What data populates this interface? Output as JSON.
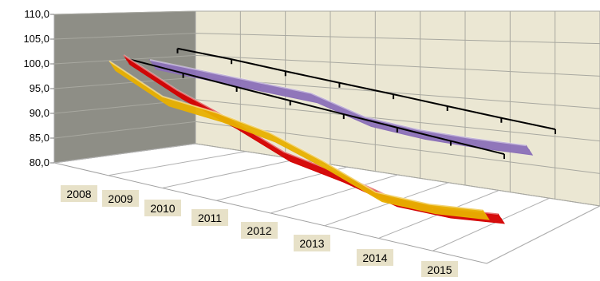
{
  "chart_data": {
    "type": "line",
    "style": "3d-ribbon",
    "title": "",
    "xlabel": "",
    "ylabel": "",
    "categories": [
      "2008",
      "2009",
      "2010",
      "2011",
      "2012",
      "2013",
      "2014",
      "2015"
    ],
    "y_ticks": [
      "80,0",
      "85,0",
      "90,0",
      "95,0",
      "100,0",
      "105,0",
      "110,0"
    ],
    "ylim": [
      80,
      110
    ],
    "grid": true,
    "legend": "none",
    "series": [
      {
        "color": "#e8b000",
        "values": [
          100.0,
          95.0,
          94.0,
          92.0,
          88.0,
          83.0,
          82.5,
          83.5
        ]
      },
      {
        "color": "#d40000",
        "values": [
          101.0,
          96.0,
          92.0,
          87.0,
          84.5,
          81.0,
          80.5,
          81.5
        ]
      },
      {
        "color": "#8b70b8",
        "values": [
          99.5,
          99.5,
          99.5,
          99.5,
          96.5,
          96.0,
          96.5,
          97.5
        ]
      },
      {
        "color": "#000000",
        "values": [
          100.0,
          99.5,
          99.0,
          98.5,
          98.0,
          97.5,
          97.0,
          96.5
        ]
      },
      {
        "color": "#000000",
        "values": [
          101.5,
          101.5,
          101.2,
          101.0,
          100.8,
          100.5,
          100.2,
          100.0
        ]
      }
    ]
  }
}
